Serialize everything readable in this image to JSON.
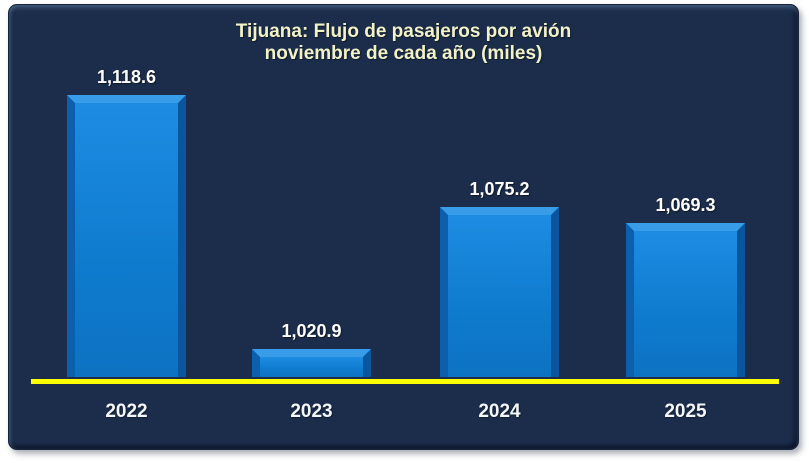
{
  "chart_data": {
    "type": "bar",
    "title": "Tijuana: Flujo de pasajeros por avión",
    "subtitle": "noviembre de cada año (miles)",
    "categories": [
      "2022",
      "2023",
      "2024",
      "2025"
    ],
    "values": [
      1118.6,
      1020.9,
      1075.2,
      1069.3
    ],
    "value_labels": [
      "1,118.6",
      "1,020.9",
      "1,075.2",
      "1,069.3"
    ],
    "ylim": [
      1010,
      1130
    ],
    "grid": false,
    "legend": "none",
    "xlabel": "",
    "ylabel": "",
    "colors": {
      "bar_fill": "#0f7ccf",
      "bar_bevel_light": "#389ce9",
      "bar_bevel_dark": "#0b5aa4",
      "baseline": "#ffff00",
      "panel_background": "#1b2d4b",
      "page_background": "#ffffff",
      "title_text": "#f2f2c8",
      "value_text": "#ffffff",
      "axis_text": "#f4f7fa"
    }
  }
}
